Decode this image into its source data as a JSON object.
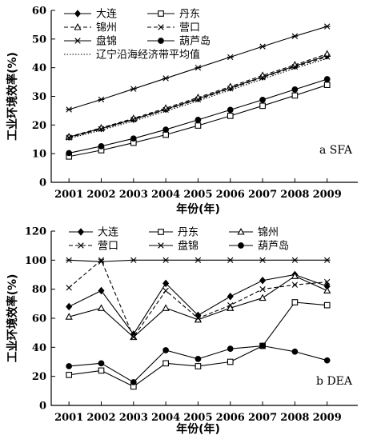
{
  "chart_data": [
    {
      "type": "line",
      "title": "a SFA",
      "xlabel": "年份(年)",
      "ylabel": "工业环境效率(%)",
      "x": [
        "2001",
        "2002",
        "2003",
        "2004",
        "2005",
        "2006",
        "2007",
        "2008",
        "2009"
      ],
      "ylim": [
        0,
        60
      ],
      "yticks": [
        0,
        10,
        20,
        30,
        40,
        50,
        60
      ],
      "grid": false,
      "legend": "top-left",
      "series": [
        {
          "name": "大连",
          "marker": "diamond-filled",
          "dash": "solid",
          "values": [
            15.8,
            18.8,
            22.0,
            25.5,
            29.2,
            33.0,
            36.8,
            40.6,
            44.2
          ]
        },
        {
          "name": "丹东",
          "marker": "square-open",
          "dash": "solid",
          "values": [
            9.0,
            11.2,
            13.8,
            16.6,
            19.8,
            23.2,
            26.7,
            30.3,
            34.0
          ]
        },
        {
          "name": "锦州",
          "marker": "triangle-open",
          "dash": "dashed",
          "values": [
            15.9,
            19.0,
            22.3,
            25.9,
            29.6,
            33.4,
            37.3,
            41.0,
            44.8
          ]
        },
        {
          "name": "营口",
          "marker": "x",
          "dash": "dashed",
          "values": [
            15.6,
            18.6,
            21.9,
            25.3,
            28.9,
            32.7,
            36.6,
            40.3,
            43.8
          ]
        },
        {
          "name": "盘锦",
          "marker": "asterisk",
          "dash": "solid",
          "values": [
            25.4,
            28.9,
            32.6,
            36.3,
            40.0,
            43.7,
            47.4,
            51.0,
            54.4
          ]
        },
        {
          "name": "葫芦岛",
          "marker": "circle-filled",
          "dash": "solid",
          "values": [
            10.2,
            12.6,
            15.3,
            18.4,
            21.8,
            25.3,
            28.8,
            32.4,
            36.0
          ]
        },
        {
          "name": "辽宁沿海经济带平均值",
          "marker": "none",
          "dash": "dotted",
          "values": [
            15.3,
            18.2,
            21.4,
            24.8,
            28.4,
            32.2,
            36.0,
            39.8,
            43.2
          ]
        }
      ]
    },
    {
      "type": "line",
      "title": "b DEA",
      "xlabel": "年份(年)",
      "ylabel": "工业环境效率(%)",
      "x": [
        "2001",
        "2002",
        "2003",
        "2004",
        "2005",
        "2006",
        "2007",
        "2008",
        "2009"
      ],
      "ylim": [
        0,
        120
      ],
      "yticks": [
        0,
        20,
        40,
        60,
        80,
        100,
        120
      ],
      "grid": false,
      "legend": "top-left",
      "series": [
        {
          "name": "大连",
          "marker": "diamond-filled",
          "dash": "solid",
          "values": [
            68,
            79,
            49,
            84,
            62,
            75,
            86,
            90,
            82
          ]
        },
        {
          "name": "丹东",
          "marker": "square-open",
          "dash": "solid",
          "values": [
            21,
            24,
            13,
            29,
            27,
            30,
            41,
            71,
            69
          ]
        },
        {
          "name": "锦州",
          "marker": "triangle-open",
          "dash": "solid",
          "values": [
            61,
            67,
            47,
            67,
            59,
            67,
            74,
            89,
            79
          ]
        },
        {
          "name": "营口",
          "marker": "x",
          "dash": "dashed",
          "values": [
            81,
            100,
            47,
            79,
            60,
            69,
            80,
            83,
            85
          ]
        },
        {
          "name": "盘锦",
          "marker": "asterisk",
          "dash": "solid",
          "values": [
            100,
            99,
            100,
            100,
            100,
            100,
            100,
            100,
            100
          ]
        },
        {
          "name": "葫芦岛",
          "marker": "circle-filled",
          "dash": "solid",
          "values": [
            27,
            29,
            16,
            38,
            32,
            39,
            41,
            37,
            31
          ]
        }
      ]
    }
  ]
}
